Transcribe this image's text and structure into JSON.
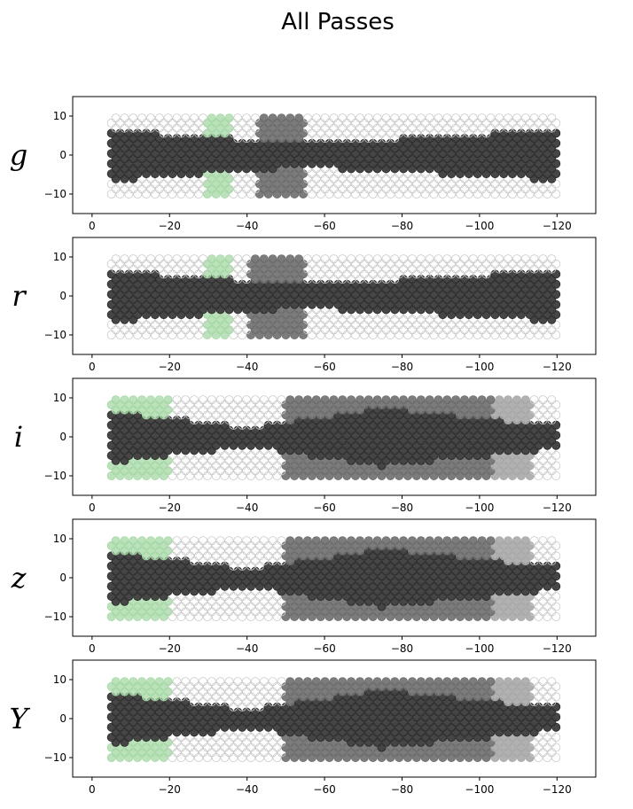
{
  "figure": {
    "title": "All Passes"
  },
  "colors": {
    "observed": "#3c3c3c",
    "partial": "#6e6e6e",
    "light": "#a8a8a8",
    "unobserved_edge": "#c8c8c8",
    "green": "#a6d8a6",
    "dark_green": "#3c7a3c"
  },
  "chart_data": [
    {
      "type": "scatter",
      "panel_label": "g",
      "xlim": [
        5,
        -130
      ],
      "ylim": [
        -15,
        15
      ],
      "xticks": [
        "0",
        "−20",
        "−40",
        "−60",
        "−80",
        "−100",
        "−120"
      ],
      "yticks": [
        "10",
        "0",
        "−10"
      ],
      "x_extent": [
        -5,
        -120
      ],
      "y_extent": [
        -10,
        10
      ],
      "regions": [
        {
          "status": "observed",
          "xrange": [
            -5,
            -120
          ],
          "y_half_width": [
            6.5,
            3.0,
            6.5
          ],
          "y_half_width_at_x": [
            -5,
            -55,
            -120
          ]
        },
        {
          "status": "partial",
          "xrange": [
            -43,
            -55
          ],
          "yrange": [
            -10,
            10
          ]
        },
        {
          "status": "green",
          "xrange": [
            -29,
            -36
          ],
          "yrange": [
            -10,
            10
          ]
        }
      ]
    },
    {
      "type": "scatter",
      "panel_label": "r",
      "xlim": [
        5,
        -130
      ],
      "ylim": [
        -15,
        15
      ],
      "xticks": [
        "0",
        "−20",
        "−40",
        "−60",
        "−80",
        "−100",
        "−120"
      ],
      "yticks": [
        "10",
        "0",
        "−10"
      ],
      "x_extent": [
        -5,
        -120
      ],
      "y_extent": [
        -10,
        10
      ],
      "regions": [
        {
          "status": "observed",
          "xrange": [
            -5,
            -120
          ],
          "y_half_width": [
            6.5,
            3.0,
            6.5
          ],
          "y_half_width_at_x": [
            -5,
            -55,
            -120
          ]
        },
        {
          "status": "partial",
          "xrange": [
            -41,
            -55
          ],
          "yrange": [
            -10,
            10
          ]
        },
        {
          "status": "green",
          "xrange": [
            -29,
            -36
          ],
          "yrange": [
            -10,
            10
          ]
        }
      ]
    },
    {
      "type": "scatter",
      "panel_label": "i",
      "xlim": [
        5,
        -130
      ],
      "ylim": [
        -15,
        15
      ],
      "xticks": [
        "0",
        "−20",
        "−40",
        "−60",
        "−80",
        "−100",
        "−120"
      ],
      "yticks": [
        "10",
        "0",
        "−10"
      ],
      "x_extent": [
        -5,
        -120
      ],
      "y_extent": [
        -10,
        10
      ],
      "regions": [
        {
          "status": "partial",
          "xrange": [
            -49,
            -113
          ],
          "yrange": [
            -10,
            10
          ]
        },
        {
          "status": "light",
          "xrange": [
            -103,
            -113
          ],
          "yrange": [
            -10,
            10
          ]
        },
        {
          "status": "green",
          "xrange": [
            -5,
            -20
          ],
          "yrange": [
            -10,
            10
          ]
        },
        {
          "status": "observed",
          "xrange": [
            -5,
            -120
          ],
          "y_half_width": [
            6.5,
            2.5,
            7.5,
            3.0
          ],
          "y_half_width_at_x": [
            -5,
            -40,
            -75,
            -120
          ]
        }
      ]
    },
    {
      "type": "scatter",
      "panel_label": "z",
      "xlim": [
        5,
        -130
      ],
      "ylim": [
        -15,
        15
      ],
      "xticks": [
        "0",
        "−20",
        "−40",
        "−60",
        "−80",
        "−100",
        "−120"
      ],
      "yticks": [
        "10",
        "0",
        "−10"
      ],
      "x_extent": [
        -5,
        -120
      ],
      "y_extent": [
        -10,
        10
      ],
      "regions": [
        {
          "status": "partial",
          "xrange": [
            -49,
            -113
          ],
          "yrange": [
            -10,
            10
          ]
        },
        {
          "status": "light",
          "xrange": [
            -103,
            -113
          ],
          "yrange": [
            -10,
            10
          ]
        },
        {
          "status": "green",
          "xrange": [
            -5,
            -20
          ],
          "yrange": [
            -10,
            10
          ]
        },
        {
          "status": "observed",
          "xrange": [
            -5,
            -120
          ],
          "y_half_width": [
            6.5,
            2.5,
            7.5,
            3.0
          ],
          "y_half_width_at_x": [
            -5,
            -40,
            -75,
            -120
          ]
        }
      ]
    },
    {
      "type": "scatter",
      "panel_label": "Y",
      "xlim": [
        5,
        -130
      ],
      "ylim": [
        -15,
        15
      ],
      "xticks": [
        "0",
        "−20",
        "−40",
        "−60",
        "−80",
        "−100",
        "−120"
      ],
      "yticks": [
        "10",
        "0",
        "−10"
      ],
      "x_extent": [
        -5,
        -120
      ],
      "y_extent": [
        -10,
        10
      ],
      "regions": [
        {
          "status": "partial",
          "xrange": [
            -49,
            -113
          ],
          "yrange": [
            -10,
            10
          ]
        },
        {
          "status": "light",
          "xrange": [
            -103,
            -113
          ],
          "yrange": [
            -10,
            10
          ]
        },
        {
          "status": "green",
          "xrange": [
            -5,
            -20
          ],
          "yrange": [
            -10,
            10
          ]
        },
        {
          "status": "observed",
          "xrange": [
            -5,
            -120
          ],
          "y_half_width": [
            6.5,
            2.5,
            7.5,
            3.0
          ],
          "y_half_width_at_x": [
            -5,
            -40,
            -75,
            -120
          ]
        }
      ]
    }
  ]
}
